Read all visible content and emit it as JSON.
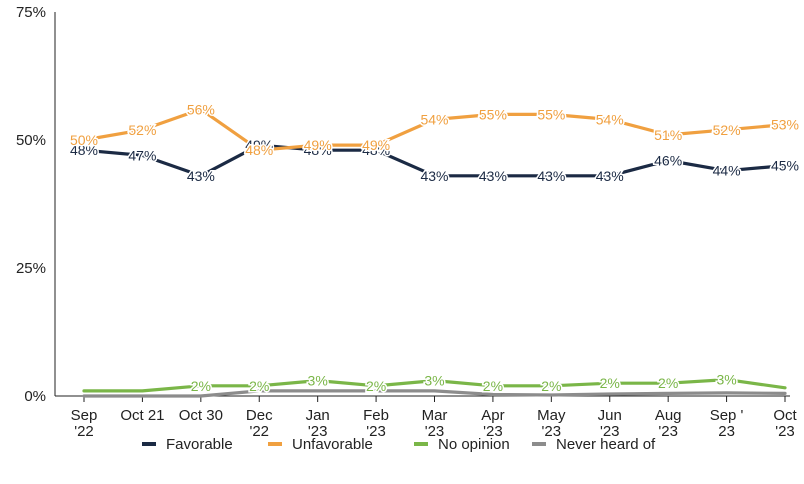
{
  "chart_data": {
    "type": "line",
    "title": "",
    "xlabel": "",
    "ylabel": "",
    "ylim": [
      0,
      75
    ],
    "yticks": [
      "0%",
      "25%",
      "50%",
      "75%"
    ],
    "ytick_values": [
      0,
      25,
      50,
      75
    ],
    "grid": false,
    "legend_position": "bottom",
    "categories": [
      [
        "Sep",
        "'22"
      ],
      [
        "Oct 21"
      ],
      [
        "Oct 30"
      ],
      [
        "Dec",
        "'22"
      ],
      [
        "Jan",
        "'23"
      ],
      [
        "Feb",
        "'23"
      ],
      [
        "Mar",
        "'23"
      ],
      [
        "Apr",
        "'23"
      ],
      [
        "May",
        "'23"
      ],
      [
        "Jun",
        "'23"
      ],
      [
        "Aug",
        "'23"
      ],
      [
        "Sep '",
        "23"
      ],
      [
        "Oct",
        "'23"
      ]
    ],
    "series": [
      {
        "name": "Favorable",
        "color": "#1b2a44",
        "values": [
          48,
          47,
          43,
          49,
          48,
          48,
          43,
          43,
          43,
          43,
          46,
          44,
          45
        ],
        "labels": [
          "48%",
          "47%",
          "43%",
          "49%",
          "48%",
          "48%",
          "43%",
          "43%",
          "43%",
          "43%",
          "46%",
          "44%",
          "45%"
        ]
      },
      {
        "name": "Unfavorable",
        "color": "#f0a040",
        "values": [
          50,
          52,
          56,
          48,
          49,
          49,
          54,
          55,
          55,
          54,
          51,
          52,
          53
        ],
        "labels": [
          "50%",
          "52%",
          "56%",
          "48%",
          "49%",
          "49%",
          "54%",
          "55%",
          "55%",
          "54%",
          "51%",
          "52%",
          "53%"
        ]
      },
      {
        "name": "No opinion",
        "color": "#7ab648",
        "values": [
          1,
          1,
          2,
          2,
          3,
          2,
          3,
          2,
          2,
          2.5,
          2.5,
          3.2,
          1.6
        ],
        "labels": [
          "",
          "",
          "2%",
          "2%",
          "3%",
          "2%",
          "3%",
          "2%",
          "2%",
          "2%",
          "2%",
          "3%",
          ""
        ]
      },
      {
        "name": "Never heard of",
        "color": "#8c8c8c",
        "values": [
          0,
          0,
          0,
          1,
          1,
          1,
          1,
          0.3,
          0.2,
          0.4,
          0.5,
          0.6,
          0.5
        ],
        "labels": [
          "",
          "",
          "",
          "",
          "",
          "",
          "",
          "",
          "",
          "",
          "",
          "",
          ""
        ]
      }
    ]
  }
}
